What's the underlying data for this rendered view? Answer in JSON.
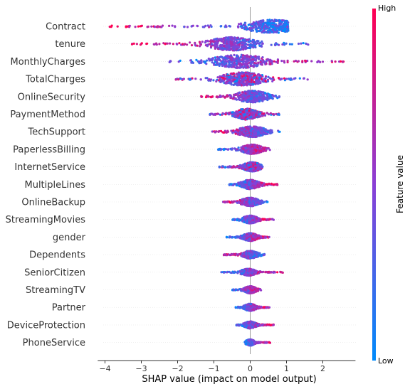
{
  "chart_data": {
    "type": "scatter",
    "subtype": "shap-beeswarm",
    "xlabel": "SHAP value (impact on model output)",
    "xlim": [
      -4.2,
      2.9
    ],
    "xticks": [
      -4,
      -3,
      -2,
      -1,
      0,
      1,
      2
    ],
    "zero_line": 0,
    "colorbar": {
      "title": "Feature value",
      "high_label": "High",
      "low_label": "Low",
      "low_color": "#008bfb",
      "high_color": "#ff0052"
    },
    "features": [
      {
        "name": "Contract",
        "min": -3.9,
        "max": 1.05,
        "peak": 0.6,
        "spread": 0.9,
        "width": 0.85,
        "high_side": "negative"
      },
      {
        "name": "tenure",
        "min": -3.3,
        "max": 1.6,
        "peak": -0.5,
        "spread": 0.8,
        "width": 0.85,
        "high_side": "negative"
      },
      {
        "name": "MonthlyCharges",
        "min": -2.45,
        "max": 2.65,
        "peak": -0.3,
        "spread": 0.9,
        "width": 0.85,
        "high_side": "positive"
      },
      {
        "name": "TotalCharges",
        "min": -2.1,
        "max": 1.6,
        "peak": -0.2,
        "spread": 0.75,
        "width": 0.85,
        "high_side": "mixed"
      },
      {
        "name": "OnlineSecurity",
        "min": -1.35,
        "max": 0.85,
        "peak": 0.05,
        "spread": 0.55,
        "width": 0.75,
        "high_side": "negative"
      },
      {
        "name": "PaymentMethod",
        "min": -1.15,
        "max": 0.8,
        "peak": -0.1,
        "spread": 0.4,
        "width": 0.7,
        "high_side": "mixed"
      },
      {
        "name": "TechSupport",
        "min": -1.05,
        "max": 0.85,
        "peak": 0.05,
        "spread": 0.45,
        "width": 0.7,
        "high_side": "negative"
      },
      {
        "name": "PaperlessBilling",
        "min": -0.9,
        "max": 0.55,
        "peak": 0.05,
        "spread": 0.35,
        "width": 0.6,
        "high_side": "positive"
      },
      {
        "name": "InternetService",
        "min": -0.85,
        "max": 0.35,
        "peak": 0.05,
        "spread": 0.3,
        "width": 0.6,
        "high_side": "mixed"
      },
      {
        "name": "MultipleLines",
        "min": -0.6,
        "max": 0.75,
        "peak": 0.0,
        "spread": 0.3,
        "width": 0.6,
        "high_side": "positive"
      },
      {
        "name": "OnlineBackup",
        "min": -0.75,
        "max": 0.5,
        "peak": 0.0,
        "spread": 0.3,
        "width": 0.55,
        "high_side": "negative"
      },
      {
        "name": "StreamingMovies",
        "min": -0.5,
        "max": 0.65,
        "peak": 0.0,
        "spread": 0.25,
        "width": 0.5,
        "high_side": "positive"
      },
      {
        "name": "gender",
        "min": -0.65,
        "max": 0.55,
        "peak": 0.0,
        "spread": 0.25,
        "width": 0.5,
        "high_side": "positive"
      },
      {
        "name": "Dependents",
        "min": -0.75,
        "max": 0.4,
        "peak": 0.0,
        "spread": 0.25,
        "width": 0.5,
        "high_side": "negative"
      },
      {
        "name": "SeniorCitizen",
        "min": -0.8,
        "max": 0.9,
        "peak": -0.05,
        "spread": 0.25,
        "width": 0.45,
        "high_side": "positive"
      },
      {
        "name": "StreamingTV",
        "min": -0.5,
        "max": 0.3,
        "peak": 0.0,
        "spread": 0.2,
        "width": 0.45,
        "high_side": "positive"
      },
      {
        "name": "Partner",
        "min": -0.4,
        "max": 0.55,
        "peak": 0.0,
        "spread": 0.2,
        "width": 0.45,
        "high_side": "positive"
      },
      {
        "name": "DeviceProtection",
        "min": -0.4,
        "max": 0.65,
        "peak": 0.0,
        "spread": 0.2,
        "width": 0.45,
        "high_side": "positive"
      },
      {
        "name": "PhoneService",
        "min": -0.15,
        "max": 0.55,
        "peak": 0.0,
        "spread": 0.15,
        "width": 0.4,
        "high_side": "positive"
      }
    ]
  }
}
